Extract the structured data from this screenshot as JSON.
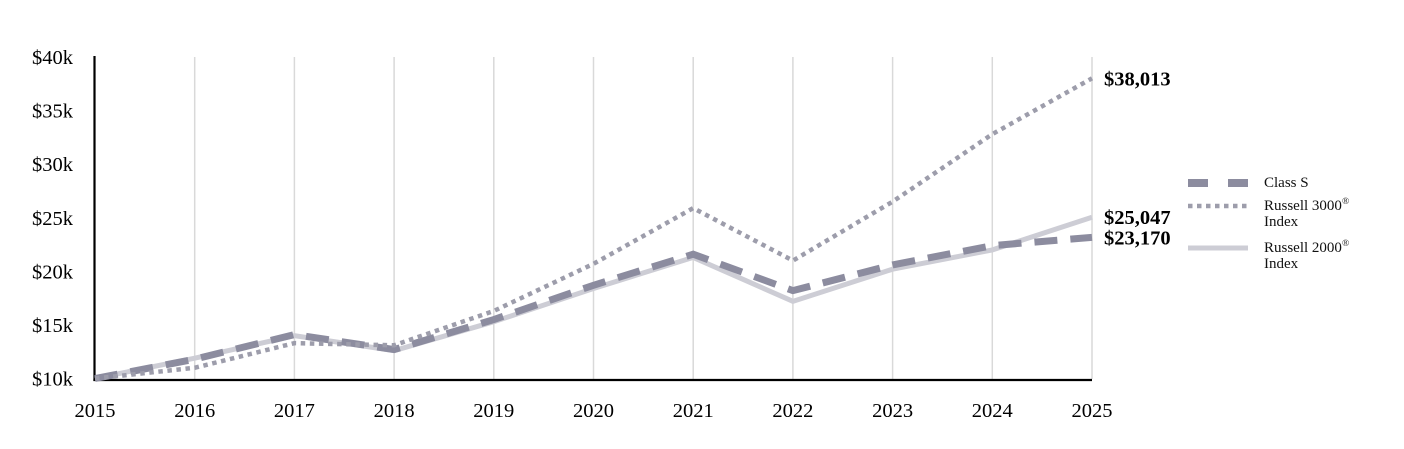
{
  "page": {
    "background": "#ffffff",
    "text_color": "#000000"
  },
  "chart_data": {
    "type": "line",
    "x": [
      2015,
      2016,
      2017,
      2018,
      2019,
      2020,
      2021,
      2022,
      2023,
      2024,
      2025
    ],
    "x_tick_labels": [
      "2015",
      "2016",
      "2017",
      "2018",
      "2019",
      "2020",
      "2021",
      "2022",
      "2023",
      "2024",
      "2025"
    ],
    "ylim": [
      10000,
      40000
    ],
    "y_ticks": [
      {
        "value": 10000,
        "label": "$10k"
      },
      {
        "value": 15000,
        "label": "$15k"
      },
      {
        "value": 20000,
        "label": "$20k"
      },
      {
        "value": 25000,
        "label": "$25k"
      },
      {
        "value": 30000,
        "label": "$30k"
      },
      {
        "value": 35000,
        "label": "$35k"
      },
      {
        "value": 40000,
        "label": "$40k"
      }
    ],
    "grid": "vertical-only",
    "grid_color": "#d9d9d9",
    "axis_color": "#000000",
    "legend_position": "right",
    "series": [
      {
        "name": "Class S",
        "style": "dashed",
        "color": "#8c8c9f",
        "values": [
          10000,
          11800,
          14100,
          12700,
          15500,
          18700,
          21600,
          18200,
          20600,
          22400,
          23170
        ],
        "end_label": "$23,170"
      },
      {
        "name": "Russell 3000 Index",
        "style": "dotted",
        "color": "#9d9dab",
        "values": [
          10000,
          11000,
          13300,
          13100,
          16300,
          20700,
          25900,
          21000,
          26500,
          32800,
          38013
        ],
        "end_label": "$38,013"
      },
      {
        "name": "Russell 2000 Index",
        "style": "solid",
        "color": "#cdcdd5",
        "values": [
          10000,
          11900,
          14000,
          12600,
          15300,
          18400,
          21300,
          17200,
          20200,
          22000,
          25047
        ],
        "end_label": "$25,047"
      }
    ]
  },
  "legend": {
    "items": [
      {
        "name": "Class S",
        "sup": "",
        "line2": ""
      },
      {
        "name": "Russell 3000",
        "sup": "®",
        "line2": "Index"
      },
      {
        "name": "Russell 2000",
        "sup": "®",
        "line2": "Index"
      }
    ]
  }
}
